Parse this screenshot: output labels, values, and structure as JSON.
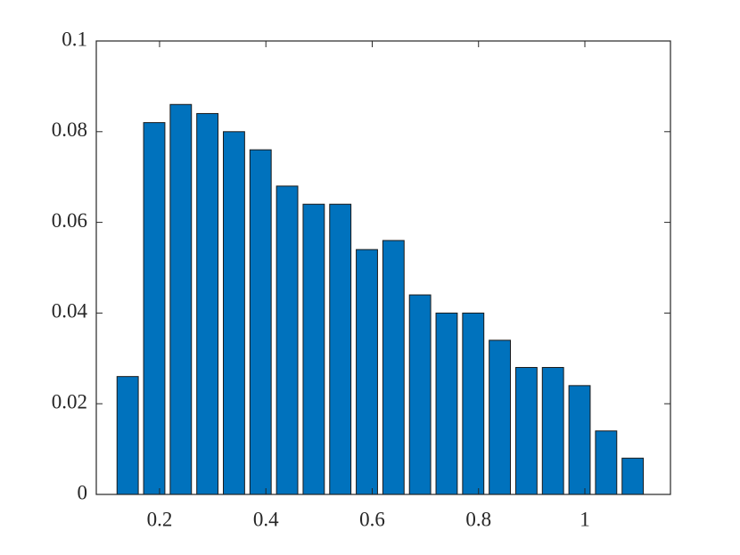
{
  "chart_data": {
    "type": "bar",
    "x": [
      0.14,
      0.19,
      0.24,
      0.29,
      0.34,
      0.39,
      0.44,
      0.49,
      0.54,
      0.59,
      0.64,
      0.69,
      0.74,
      0.79,
      0.84,
      0.89,
      0.94,
      0.99,
      1.04,
      1.09
    ],
    "values": [
      0.026,
      0.082,
      0.086,
      0.084,
      0.08,
      0.076,
      0.068,
      0.064,
      0.064,
      0.054,
      0.056,
      0.044,
      0.04,
      0.04,
      0.034,
      0.028,
      0.028,
      0.024,
      0.014,
      0.008
    ],
    "color": "#0072bd",
    "xlim": [
      0.081,
      1.161
    ],
    "xticks": [
      0.2,
      0.4,
      0.6,
      0.8,
      1
    ],
    "ylim": [
      0,
      0.1
    ],
    "yticks": [
      0,
      0.02,
      0.04,
      0.06,
      0.08,
      0.1
    ],
    "grid": false
  }
}
